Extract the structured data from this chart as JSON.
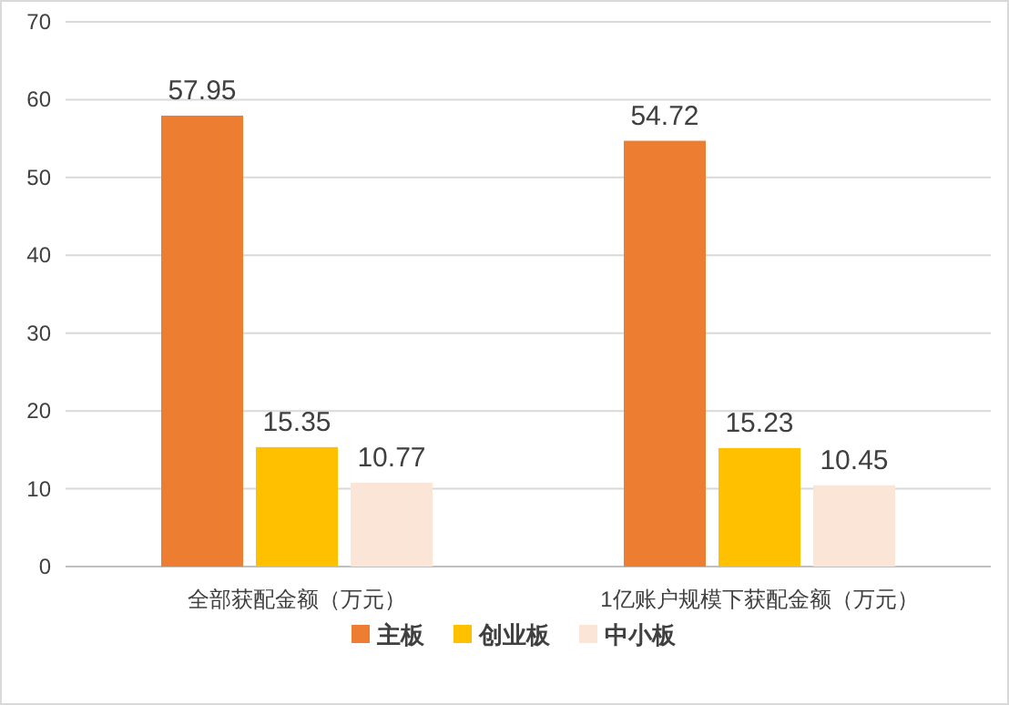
{
  "chart_data": {
    "type": "bar",
    "categories": [
      "全部获配金额（万元）",
      "1亿账户规模下获配金额（万元）"
    ],
    "series": [
      {
        "name": "主板",
        "color": "#ed7d31",
        "values": [
          57.95,
          54.72
        ]
      },
      {
        "name": "创业板",
        "color": "#ffc000",
        "values": [
          15.35,
          15.23
        ]
      },
      {
        "name": "中小板",
        "color": "#fbe5d6",
        "values": [
          10.77,
          10.45
        ]
      }
    ],
    "ylim": [
      0,
      70
    ],
    "yticks": [
      0,
      10,
      20,
      30,
      40,
      50,
      60,
      70
    ],
    "grid": "y",
    "legend": "bottom",
    "data_labels": true
  }
}
